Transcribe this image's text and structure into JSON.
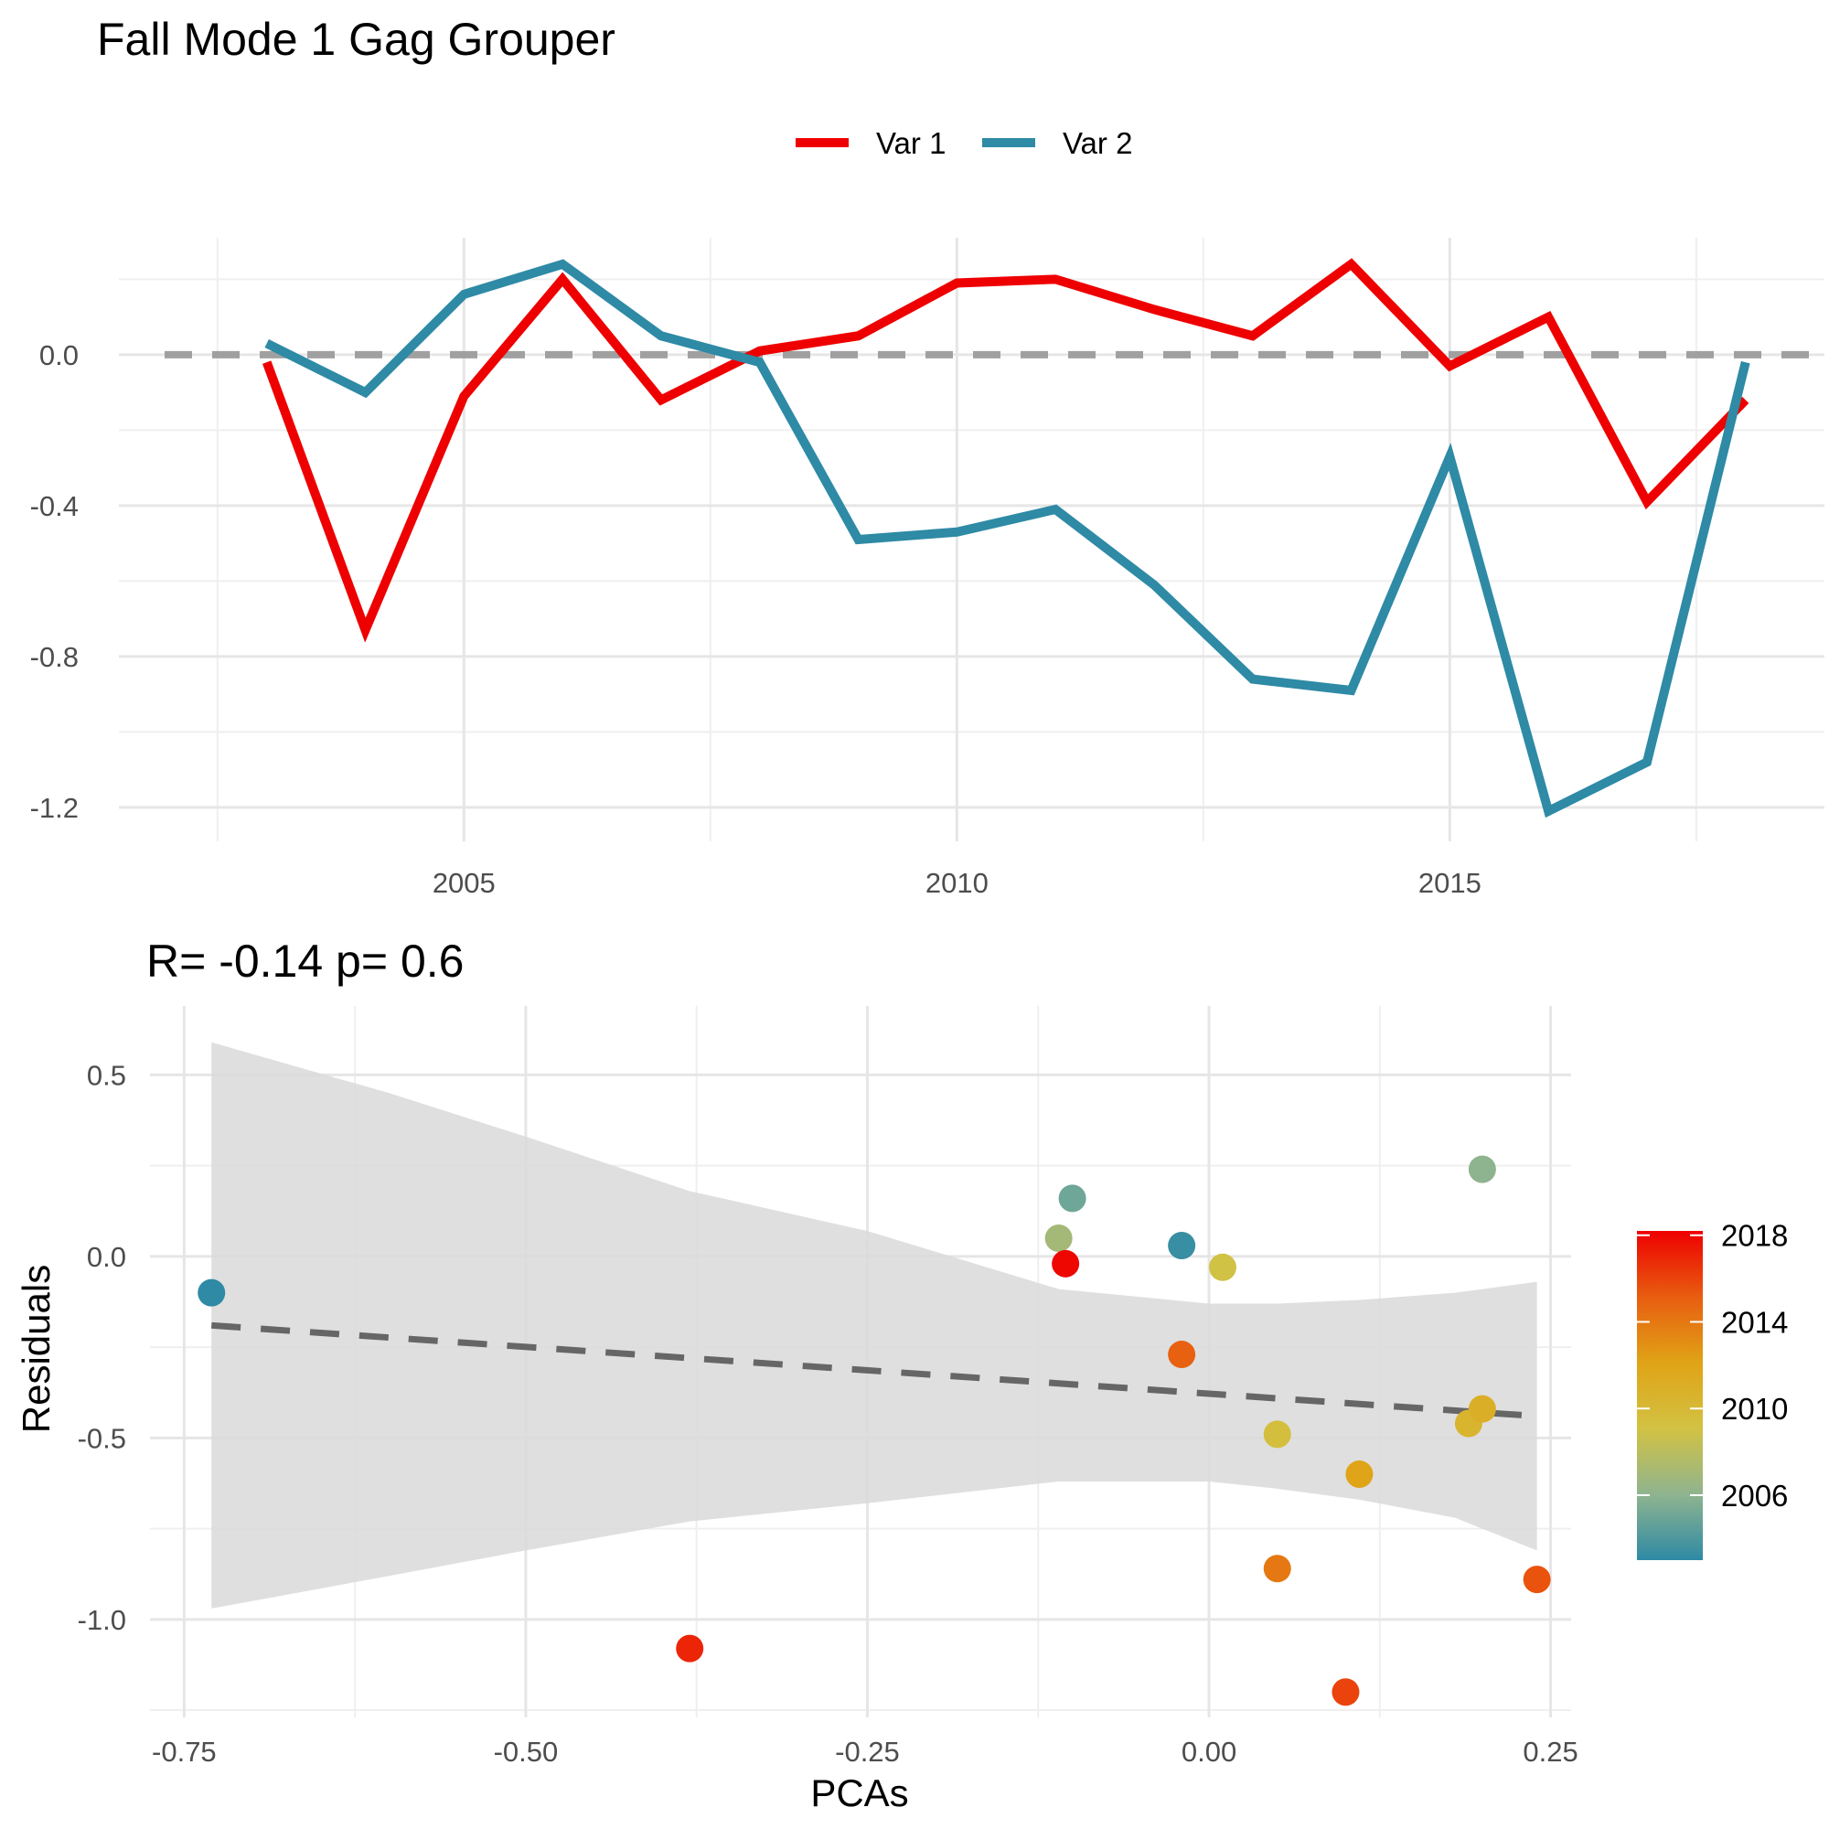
{
  "title": "Fall Mode 1 Gag Grouper",
  "chart_data": [
    {
      "type": "line",
      "title": "Fall Mode 1 Gag Grouper",
      "xlabel": "",
      "ylabel": "",
      "x": [
        2003,
        2004,
        2005,
        2006,
        2007,
        2008,
        2009,
        2010,
        2011,
        2012,
        2013,
        2014,
        2015,
        2016,
        2017,
        2018
      ],
      "series": [
        {
          "name": "Var 1",
          "color": "#ee0000",
          "values": [
            -0.02,
            -0.73,
            -0.11,
            0.2,
            -0.12,
            0.01,
            0.05,
            0.19,
            0.2,
            0.12,
            0.05,
            0.24,
            -0.03,
            0.1,
            -0.39,
            -0.12
          ]
        },
        {
          "name": "Var 2",
          "color": "#2e8aa5",
          "values": [
            0.03,
            -0.1,
            0.16,
            0.24,
            0.05,
            -0.02,
            -0.49,
            -0.47,
            -0.41,
            -0.61,
            -0.86,
            -0.89,
            -0.27,
            -1.21,
            -1.08,
            -0.02
          ]
        }
      ],
      "reference_line": {
        "y": 0.0,
        "style": "dashed",
        "color": "#a0a0a0"
      },
      "x_ticks": [
        "2005",
        "2010",
        "2015"
      ],
      "y_ticks": [
        "0.0",
        "-0.4",
        "-0.8",
        "-1.2"
      ],
      "xlim": [
        2001.5,
        2018.8
      ],
      "ylim": [
        -1.29,
        0.31
      ],
      "legend": {
        "position": "top",
        "entries": [
          "Var 1",
          "Var 2"
        ]
      },
      "grid": true
    },
    {
      "type": "scatter",
      "title": "R= -0.14  p= 0.6",
      "xlabel": "PCAs",
      "ylabel": "Residuals",
      "x_ticks": [
        "-0.75",
        "-0.50",
        "-0.25",
        "0.00",
        "0.25"
      ],
      "y_ticks": [
        "0.5",
        "0.0",
        "-0.5",
        "-1.0"
      ],
      "xlim": [
        -0.775,
        0.265
      ],
      "ylim": [
        -1.27,
        0.69
      ],
      "grid": true,
      "points": [
        {
          "x": -0.73,
          "y": -0.1,
          "year": 2003
        },
        {
          "x": -0.1,
          "y": 0.16,
          "year": 2005
        },
        {
          "x": -0.02,
          "y": 0.03,
          "year": 2003.3
        },
        {
          "x": -0.11,
          "y": 0.05,
          "year": 2007
        },
        {
          "x": 0.01,
          "y": -0.03,
          "year": 2009
        },
        {
          "x": 0.2,
          "y": 0.24,
          "year": 2006
        },
        {
          "x": -0.105,
          "y": -0.02,
          "year": 2018
        },
        {
          "x": -0.02,
          "y": -0.27,
          "year": 2015
        },
        {
          "x": 0.05,
          "y": -0.49,
          "year": 2009.5
        },
        {
          "x": 0.19,
          "y": -0.46,
          "year": 2010.5
        },
        {
          "x": 0.2,
          "y": -0.42,
          "year": 2011
        },
        {
          "x": 0.11,
          "y": -0.6,
          "year": 2012
        },
        {
          "x": 0.05,
          "y": -0.86,
          "year": 2014
        },
        {
          "x": 0.24,
          "y": -0.89,
          "year": 2015.5
        },
        {
          "x": -0.38,
          "y": -1.08,
          "year": 2017
        },
        {
          "x": 0.1,
          "y": -1.2,
          "year": 2016
        }
      ],
      "fit_line": {
        "x": [
          -0.73,
          0.24
        ],
        "y": [
          -0.19,
          -0.44
        ],
        "style": "dashed",
        "color": "#666666"
      },
      "confidence_band": {
        "x": [
          -0.73,
          -0.6,
          -0.5,
          -0.38,
          -0.25,
          -0.11,
          0.0,
          0.05,
          0.11,
          0.18,
          0.24
        ],
        "upper": [
          0.59,
          0.45,
          0.33,
          0.18,
          0.07,
          -0.09,
          -0.13,
          -0.13,
          -0.12,
          -0.1,
          -0.07
        ],
        "lower": [
          -0.97,
          -0.88,
          -0.81,
          -0.73,
          -0.68,
          -0.62,
          -0.62,
          -0.64,
          -0.67,
          -0.72,
          -0.81
        ]
      },
      "colorbar": {
        "title": "",
        "labels": [
          "2018",
          "2014",
          "2010",
          "2006"
        ],
        "values": [
          2018,
          2014,
          2010,
          2006
        ],
        "range": [
          2003,
          2018.2
        ],
        "colors": [
          "#2e8aa5",
          "#8fb48f",
          "#d2c243",
          "#e0a316",
          "#e85d10",
          "#ee0000"
        ]
      }
    }
  ]
}
